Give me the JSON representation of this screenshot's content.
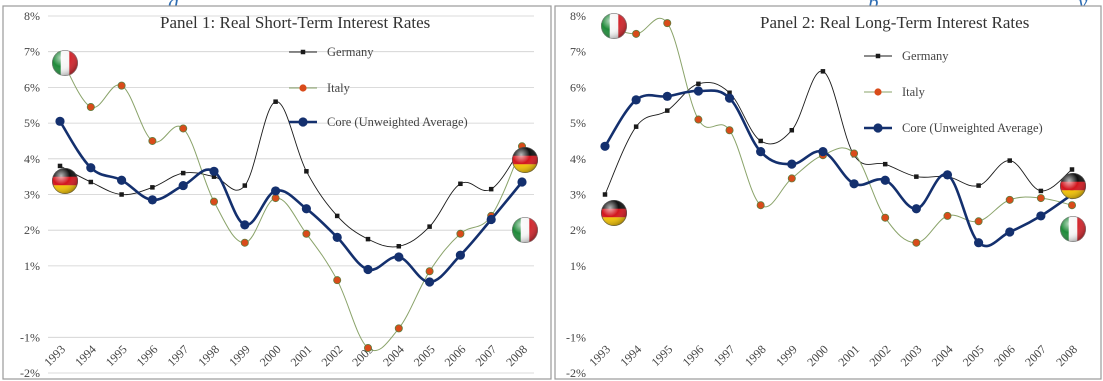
{
  "header_fragment": {
    "left": "g",
    "mid1": ",",
    "mid2": ",",
    "right_words": [
      "p",
      "y"
    ]
  },
  "colors": {
    "germany": "#1a1a1a",
    "italy": "#8aa36a",
    "italy_marker": "#d94b1a",
    "core": "#14306e",
    "grid": "#cfcfcf"
  },
  "chart_data": [
    {
      "type": "line",
      "title": "Panel 1: Real Short-Term Interest Rates",
      "xlabel": "",
      "ylabel": "",
      "categories": [
        "1993",
        "1994",
        "1995",
        "1996",
        "1997",
        "1998",
        "1999",
        "2000",
        "2001",
        "2002",
        "2003",
        "2004",
        "2005",
        "2006",
        "2007",
        "2008"
      ],
      "yticks": [
        "8%",
        "7%",
        "6%",
        "5%",
        "4%",
        "3%",
        "2%",
        "1%",
        "-1%",
        "-2%"
      ],
      "ylim": [
        -2,
        8
      ],
      "grid": true,
      "legend_position": "top-right",
      "series": [
        {
          "name": "Germany",
          "values": [
            3.8,
            3.35,
            3.0,
            3.2,
            3.6,
            3.5,
            3.25,
            5.6,
            3.65,
            2.4,
            1.75,
            1.55,
            2.1,
            3.3,
            3.15,
            4.35
          ]
        },
        {
          "name": "Italy",
          "values": [
            6.9,
            5.45,
            6.05,
            4.5,
            4.85,
            2.8,
            1.65,
            2.9,
            1.9,
            0.6,
            -1.3,
            -0.75,
            0.85,
            1.9,
            2.4,
            4.35
          ]
        },
        {
          "name": "Core (Unweighted Average)",
          "values": [
            5.05,
            3.75,
            3.4,
            2.85,
            3.25,
            3.65,
            2.15,
            3.1,
            2.6,
            1.8,
            0.9,
            1.25,
            0.55,
            1.3,
            2.3,
            3.35
          ]
        }
      ]
    },
    {
      "type": "line",
      "title": "Panel 2: Real Long-Term Interest Rates",
      "xlabel": "",
      "ylabel": "",
      "categories": [
        "1993",
        "1994",
        "1995",
        "1996",
        "1997",
        "1998",
        "1999",
        "2000",
        "2001",
        "2002",
        "2003",
        "2004",
        "2005",
        "2006",
        "2007",
        "2008"
      ],
      "yticks": [
        "8%",
        "7%",
        "6%",
        "5%",
        "4%",
        "3%",
        "2%",
        "1%",
        "-1%",
        "-2%"
      ],
      "ylim": [
        -2,
        8
      ],
      "grid": false,
      "legend_position": "top-right",
      "series": [
        {
          "name": "Germany",
          "values": [
            3.0,
            4.9,
            5.35,
            6.1,
            5.85,
            4.5,
            4.8,
            6.45,
            4.1,
            3.85,
            3.5,
            3.5,
            3.25,
            3.95,
            3.1,
            3.7
          ]
        },
        {
          "name": "Italy",
          "values": [
            7.75,
            7.5,
            7.8,
            5.1,
            4.8,
            2.7,
            3.45,
            4.1,
            4.15,
            2.35,
            1.65,
            2.4,
            2.25,
            2.85,
            2.9,
            2.7
          ]
        },
        {
          "name": "Core (Unweighted Average)",
          "values": [
            4.35,
            5.65,
            5.75,
            5.9,
            5.7,
            4.2,
            3.85,
            4.2,
            3.3,
            3.4,
            2.6,
            3.55,
            1.65,
            1.95,
            2.4,
            3.0
          ]
        }
      ]
    }
  ]
}
